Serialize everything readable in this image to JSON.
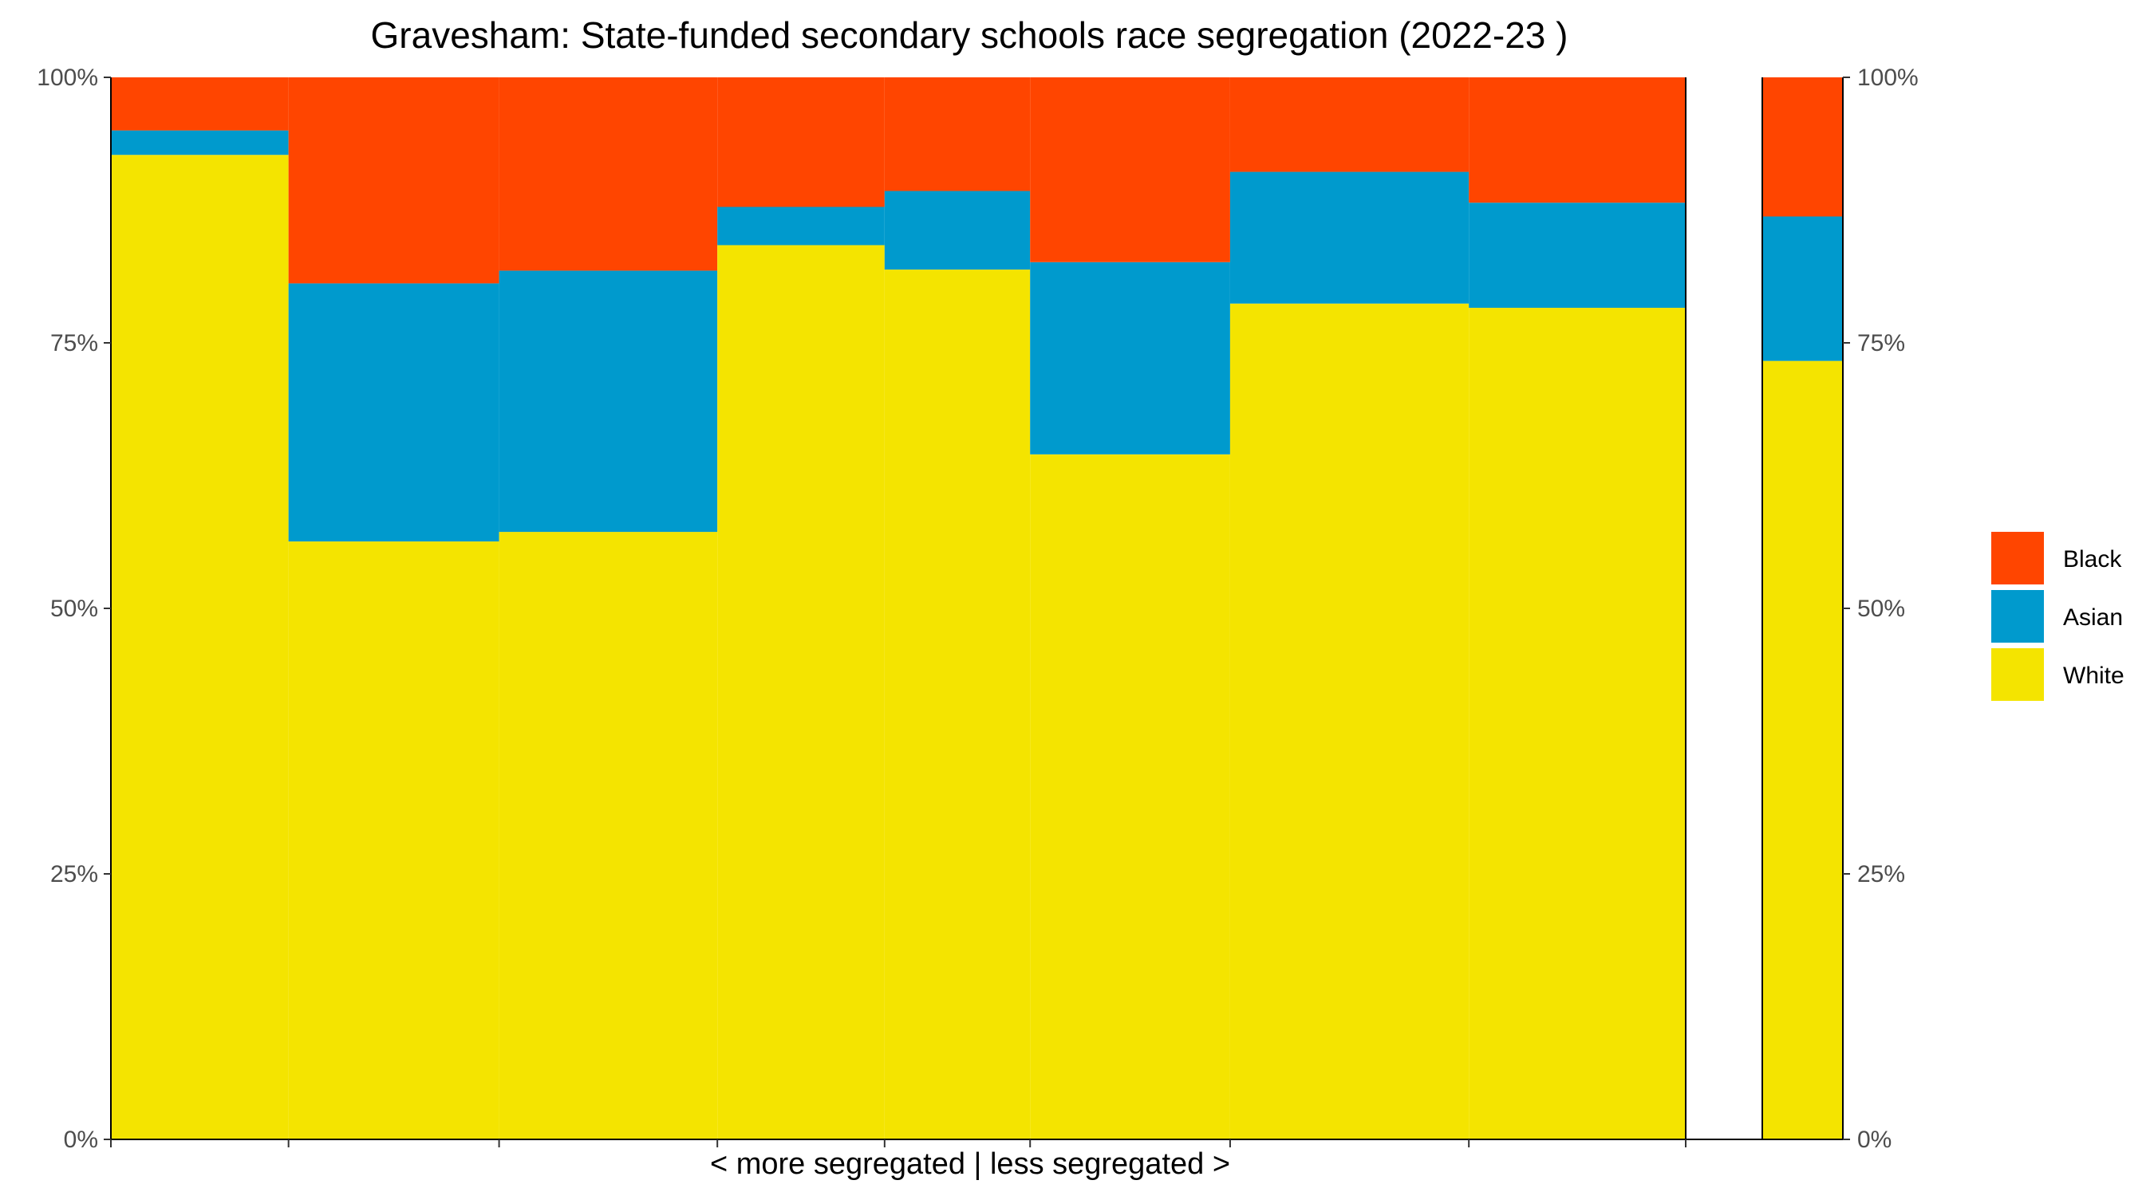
{
  "chart_data": {
    "type": "bar",
    "title": "Gravesham: State-funded secondary schools race segregation (2022-23 )",
    "xlabel": "< more segregated | less segregated >",
    "ylabel": "",
    "ylim": [
      0,
      100
    ],
    "y_ticks": [
      "0%",
      "25%",
      "50%",
      "75%",
      "100%"
    ],
    "y_axis_sides": "left and right",
    "grid": false,
    "legend_position": "right",
    "colors": {
      "Black": "#FF4500",
      "Asian": "#009ACD",
      "White": "#F4E400"
    },
    "series_order": [
      "White",
      "Asian",
      "Black"
    ],
    "legend_order": [
      "Black",
      "Asian",
      "White"
    ],
    "schools": [
      {
        "pupils_share": 0.1128,
        "White": 92.7,
        "Asian": 2.3,
        "Black": 5.0
      },
      {
        "pupils_share": 0.1337,
        "White": 56.3,
        "Asian": 24.3,
        "Black": 19.4
      },
      {
        "pupils_share": 0.1386,
        "White": 57.2,
        "Asian": 24.6,
        "Black": 18.2
      },
      {
        "pupils_share": 0.1062,
        "White": 84.2,
        "Asian": 3.6,
        "Black": 12.2
      },
      {
        "pupils_share": 0.0924,
        "White": 81.9,
        "Asian": 7.4,
        "Black": 10.7
      },
      {
        "pupils_share": 0.127,
        "White": 64.5,
        "Asian": 18.1,
        "Black": 17.4
      },
      {
        "pupils_share": 0.1516,
        "White": 78.7,
        "Asian": 12.4,
        "Black": 8.9
      },
      {
        "pupils_share": 0.1377,
        "White": 78.3,
        "Asian": 9.9,
        "Black": 11.8
      }
    ],
    "total": {
      "White": 73.3,
      "Asian": 13.6,
      "Black": 13.1
    }
  }
}
